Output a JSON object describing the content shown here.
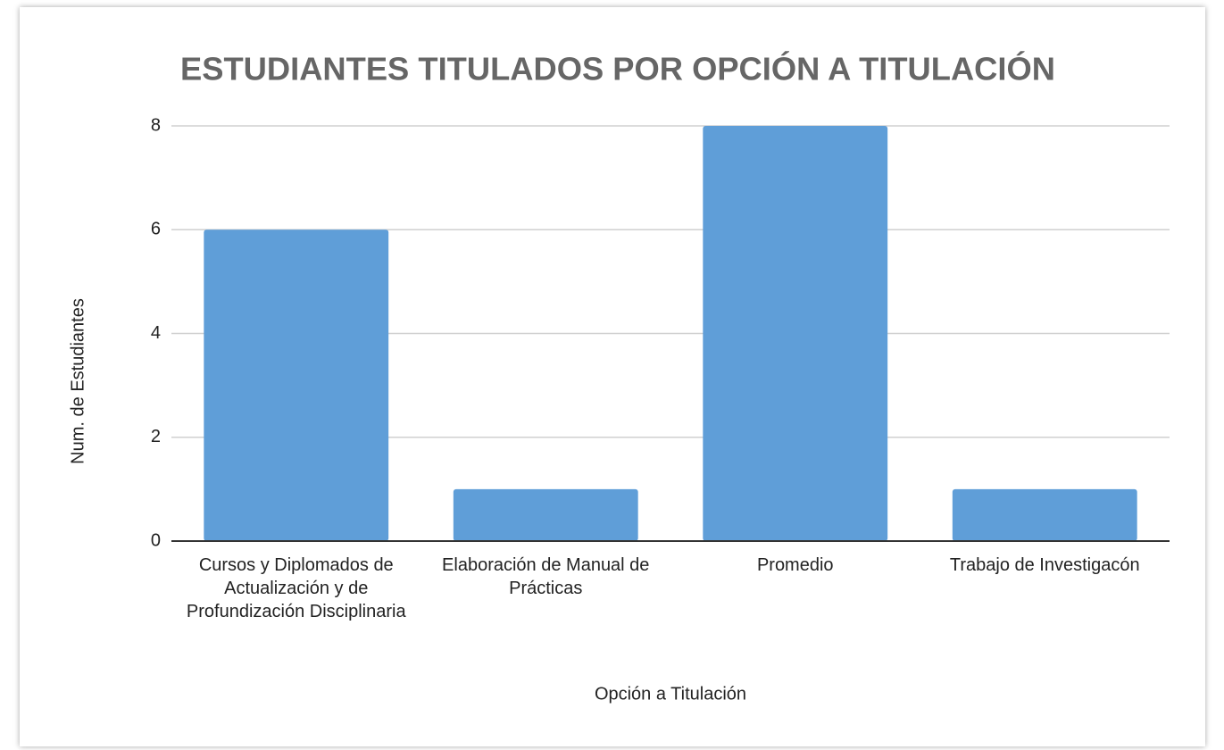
{
  "chart_data": {
    "type": "bar",
    "title": "ESTUDIANTES TITULADOS POR OPCIÓN A TITULACIÓN",
    "x_label": "Opción a Titulación",
    "y_label": "Num. de Estudiantes",
    "categories": [
      "Cursos y Diplomados de Actualización y de Profundización Disciplinaria",
      "Elaboración de Manual de Prácticas",
      "Promedio",
      "Trabajo de Investigacón"
    ],
    "values": [
      6,
      1,
      8,
      1
    ],
    "color": "#5f9ed8",
    "ylim": [
      0,
      8
    ],
    "yticks": [
      0,
      2,
      4,
      6,
      8
    ],
    "grid": true
  }
}
